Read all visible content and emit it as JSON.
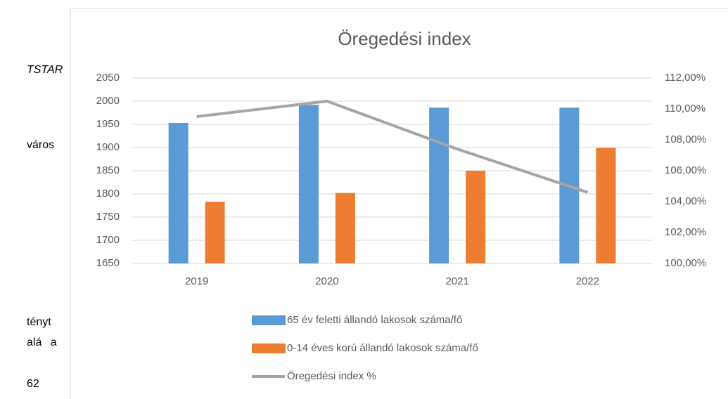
{
  "margin_text": [
    "TSTAR",
    "város",
    "tényt",
    "alá a",
    "62"
  ],
  "chart_data": {
    "type": "bar",
    "title": "Öregedési index",
    "categories": [
      "2019",
      "2020",
      "2021",
      "2022"
    ],
    "series": [
      {
        "name": "65 év feletti állandó lakosok száma/fő",
        "color": "#5b9bd5",
        "values": [
          1953,
          1992,
          1986,
          1986
        ]
      },
      {
        "name": "0-14 éves korú állandó lakosok száma/fő",
        "color": "#ed7d31",
        "values": [
          1783,
          1802,
          1850,
          1899
        ]
      },
      {
        "name": "Öregedési index %",
        "color": "#a5a5a5",
        "type": "line",
        "axis": "y2",
        "values": [
          109.5,
          110.5,
          107.4,
          104.6
        ]
      }
    ],
    "ylim": [
      1650,
      2050
    ],
    "yticks": [
      1650,
      1700,
      1750,
      1800,
      1850,
      1900,
      1950,
      2000,
      2050
    ],
    "y2lim": [
      100,
      112
    ],
    "y2ticks": [
      {
        "value": 100,
        "label": "100,00%"
      },
      {
        "value": 102,
        "label": "102,00%"
      },
      {
        "value": 104,
        "label": "104,00%"
      },
      {
        "value": 106,
        "label": "106,00%"
      },
      {
        "value": 108,
        "label": "108,00%"
      },
      {
        "value": 110,
        "label": "110,00%"
      },
      {
        "value": 112,
        "label": "112,00%"
      }
    ],
    "grid": true,
    "legend": "bottom"
  }
}
